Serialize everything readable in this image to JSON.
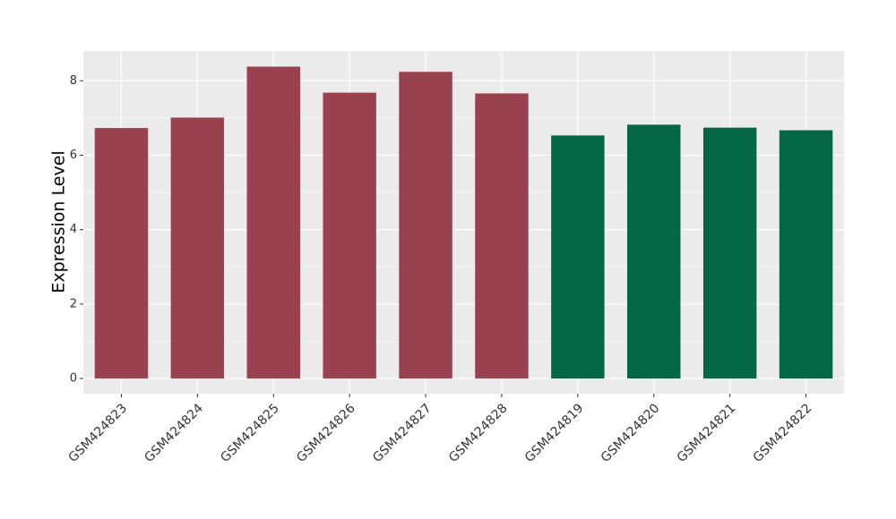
{
  "chart_data": {
    "type": "bar",
    "y_label": "Expression Level",
    "categories": [
      "GSM424823",
      "GSM424824",
      "GSM424825",
      "GSM424826",
      "GSM424827",
      "GSM424828",
      "GSM424819",
      "GSM424820",
      "GSM424821",
      "GSM424822"
    ],
    "values": [
      6.73,
      7.01,
      8.38,
      7.68,
      8.24,
      7.66,
      6.53,
      6.82,
      6.74,
      6.67
    ],
    "colors": [
      "#99414f",
      "#99414f",
      "#99414f",
      "#99414f",
      "#99414f",
      "#99414f",
      "#036645",
      "#036645",
      "#036645",
      "#036645"
    ],
    "ylim": [
      -0.41,
      8.8
    ],
    "yticks": [
      0,
      2,
      4,
      6,
      8
    ],
    "grid": true
  }
}
